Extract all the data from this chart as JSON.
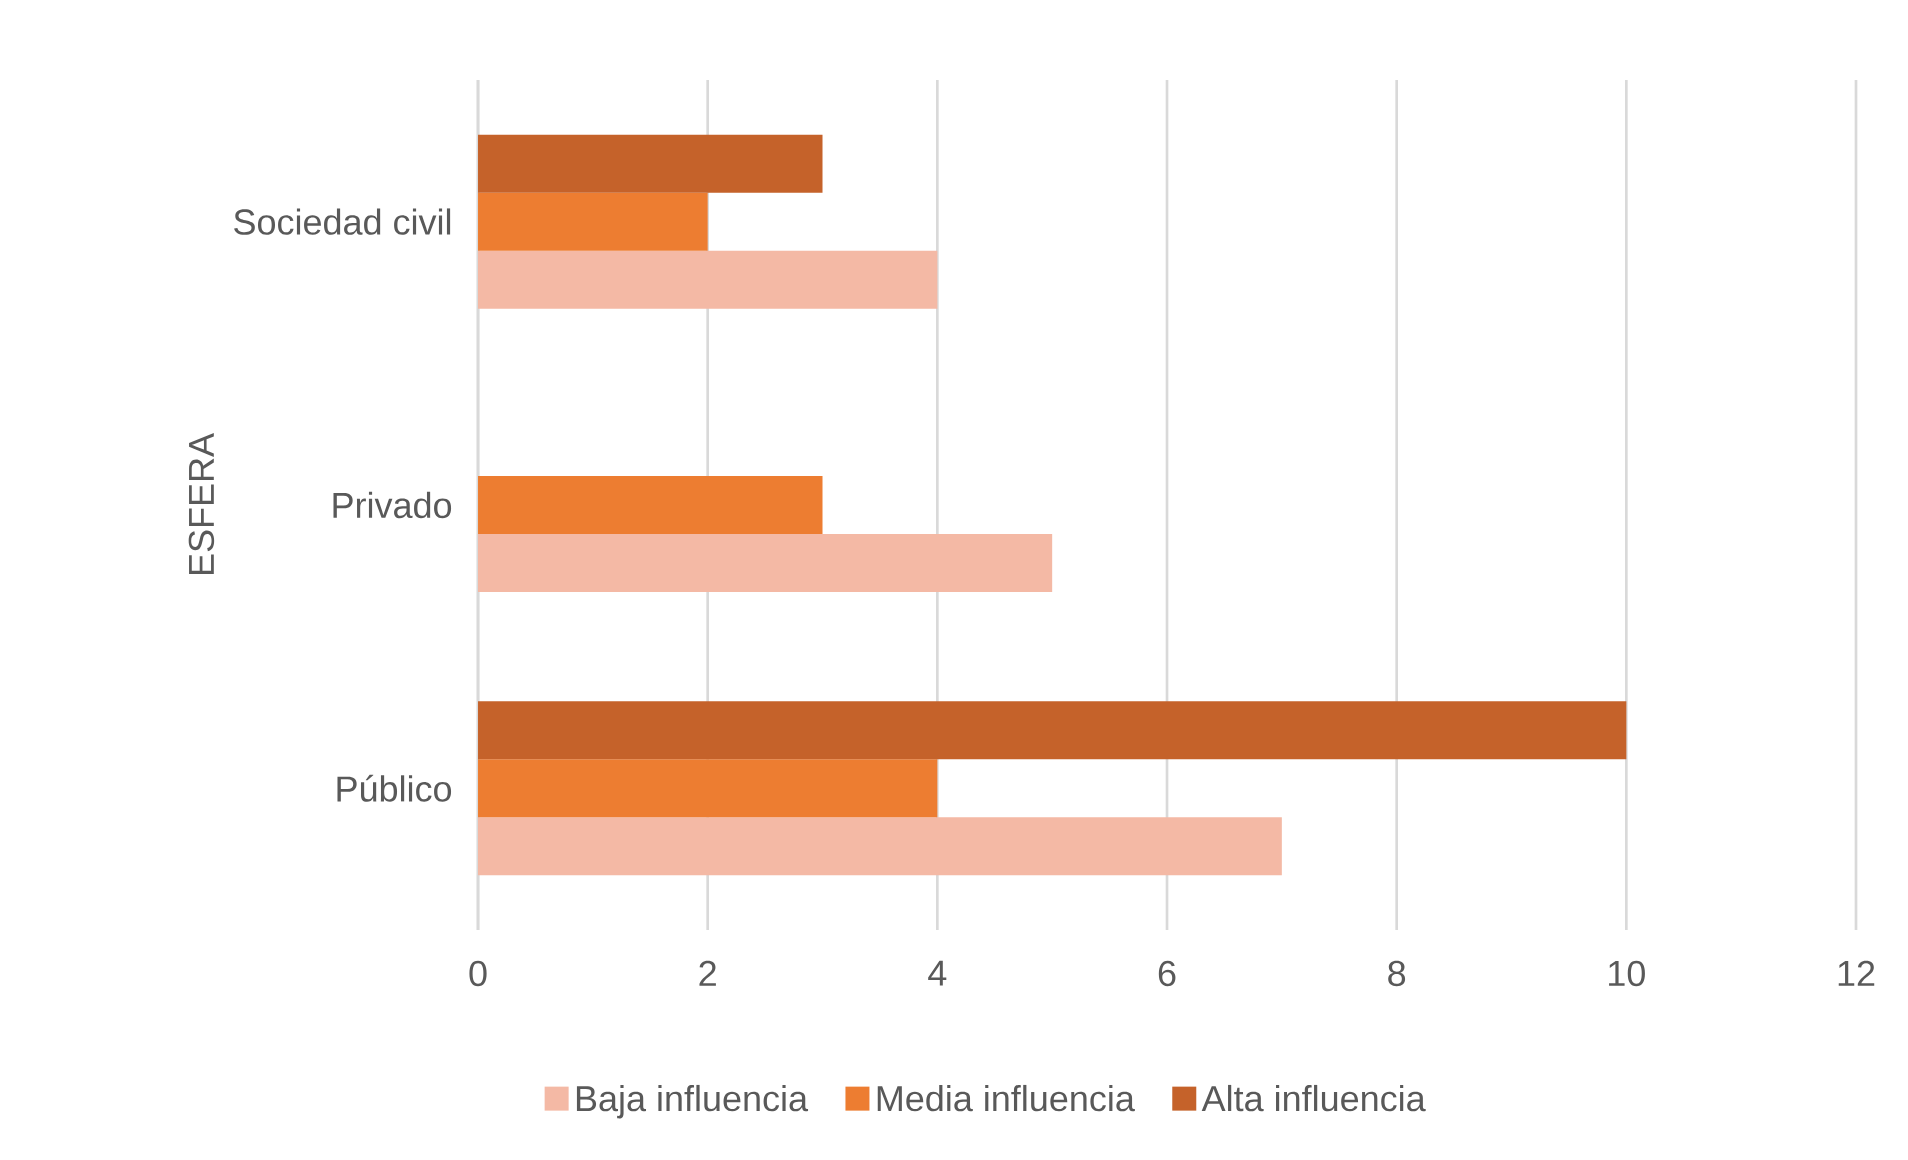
{
  "chart_data": {
    "type": "bar",
    "orientation": "horizontal",
    "ylabel": "ESFERA",
    "categories": [
      "Sociedad civil",
      "Privado",
      "Público"
    ],
    "series": [
      {
        "name": "Baja influencia",
        "color": "#f4b9a5",
        "values": [
          4,
          5,
          7
        ]
      },
      {
        "name": "Media influencia",
        "color": "#ed7d31",
        "values": [
          2,
          3,
          4
        ]
      },
      {
        "name": "Alta influencia",
        "color": "#c5622a",
        "values": [
          3,
          null,
          10
        ]
      }
    ],
    "xlim": [
      0,
      12
    ],
    "xticks": [
      0,
      2,
      4,
      6,
      8,
      10,
      12
    ],
    "grid": "x",
    "legend": "bottom"
  }
}
